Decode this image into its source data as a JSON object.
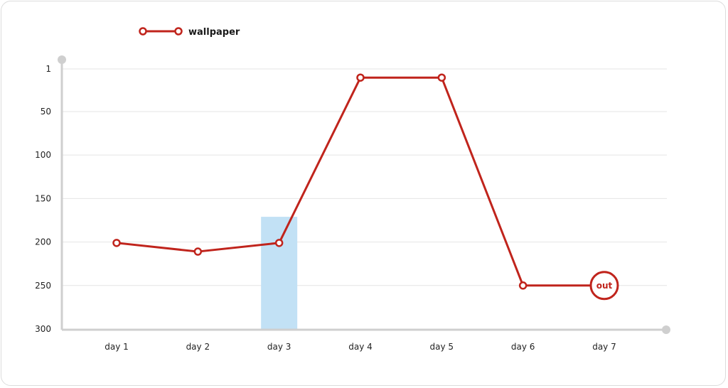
{
  "chart_data": {
    "type": "line",
    "categories": [
      "day 1",
      "day 2",
      "day 3",
      "day 4",
      "day 5",
      "day 6",
      "day 7"
    ],
    "series": [
      {
        "name": "wallpaper",
        "values": [
          201,
          211,
          201,
          11,
          11,
          250,
          250
        ],
        "color": "#c0241c"
      }
    ],
    "y_ticks": [
      1,
      50,
      100,
      150,
      200,
      250,
      300
    ],
    "ylim": [
      1,
      300
    ],
    "y_reversed": true,
    "grid": true,
    "legend_position": "top-left",
    "highlight": {
      "category": "day 3",
      "from_value": 171,
      "color": "#c2e1f5"
    },
    "end_marker": {
      "category": "day 7",
      "label": "out"
    }
  }
}
